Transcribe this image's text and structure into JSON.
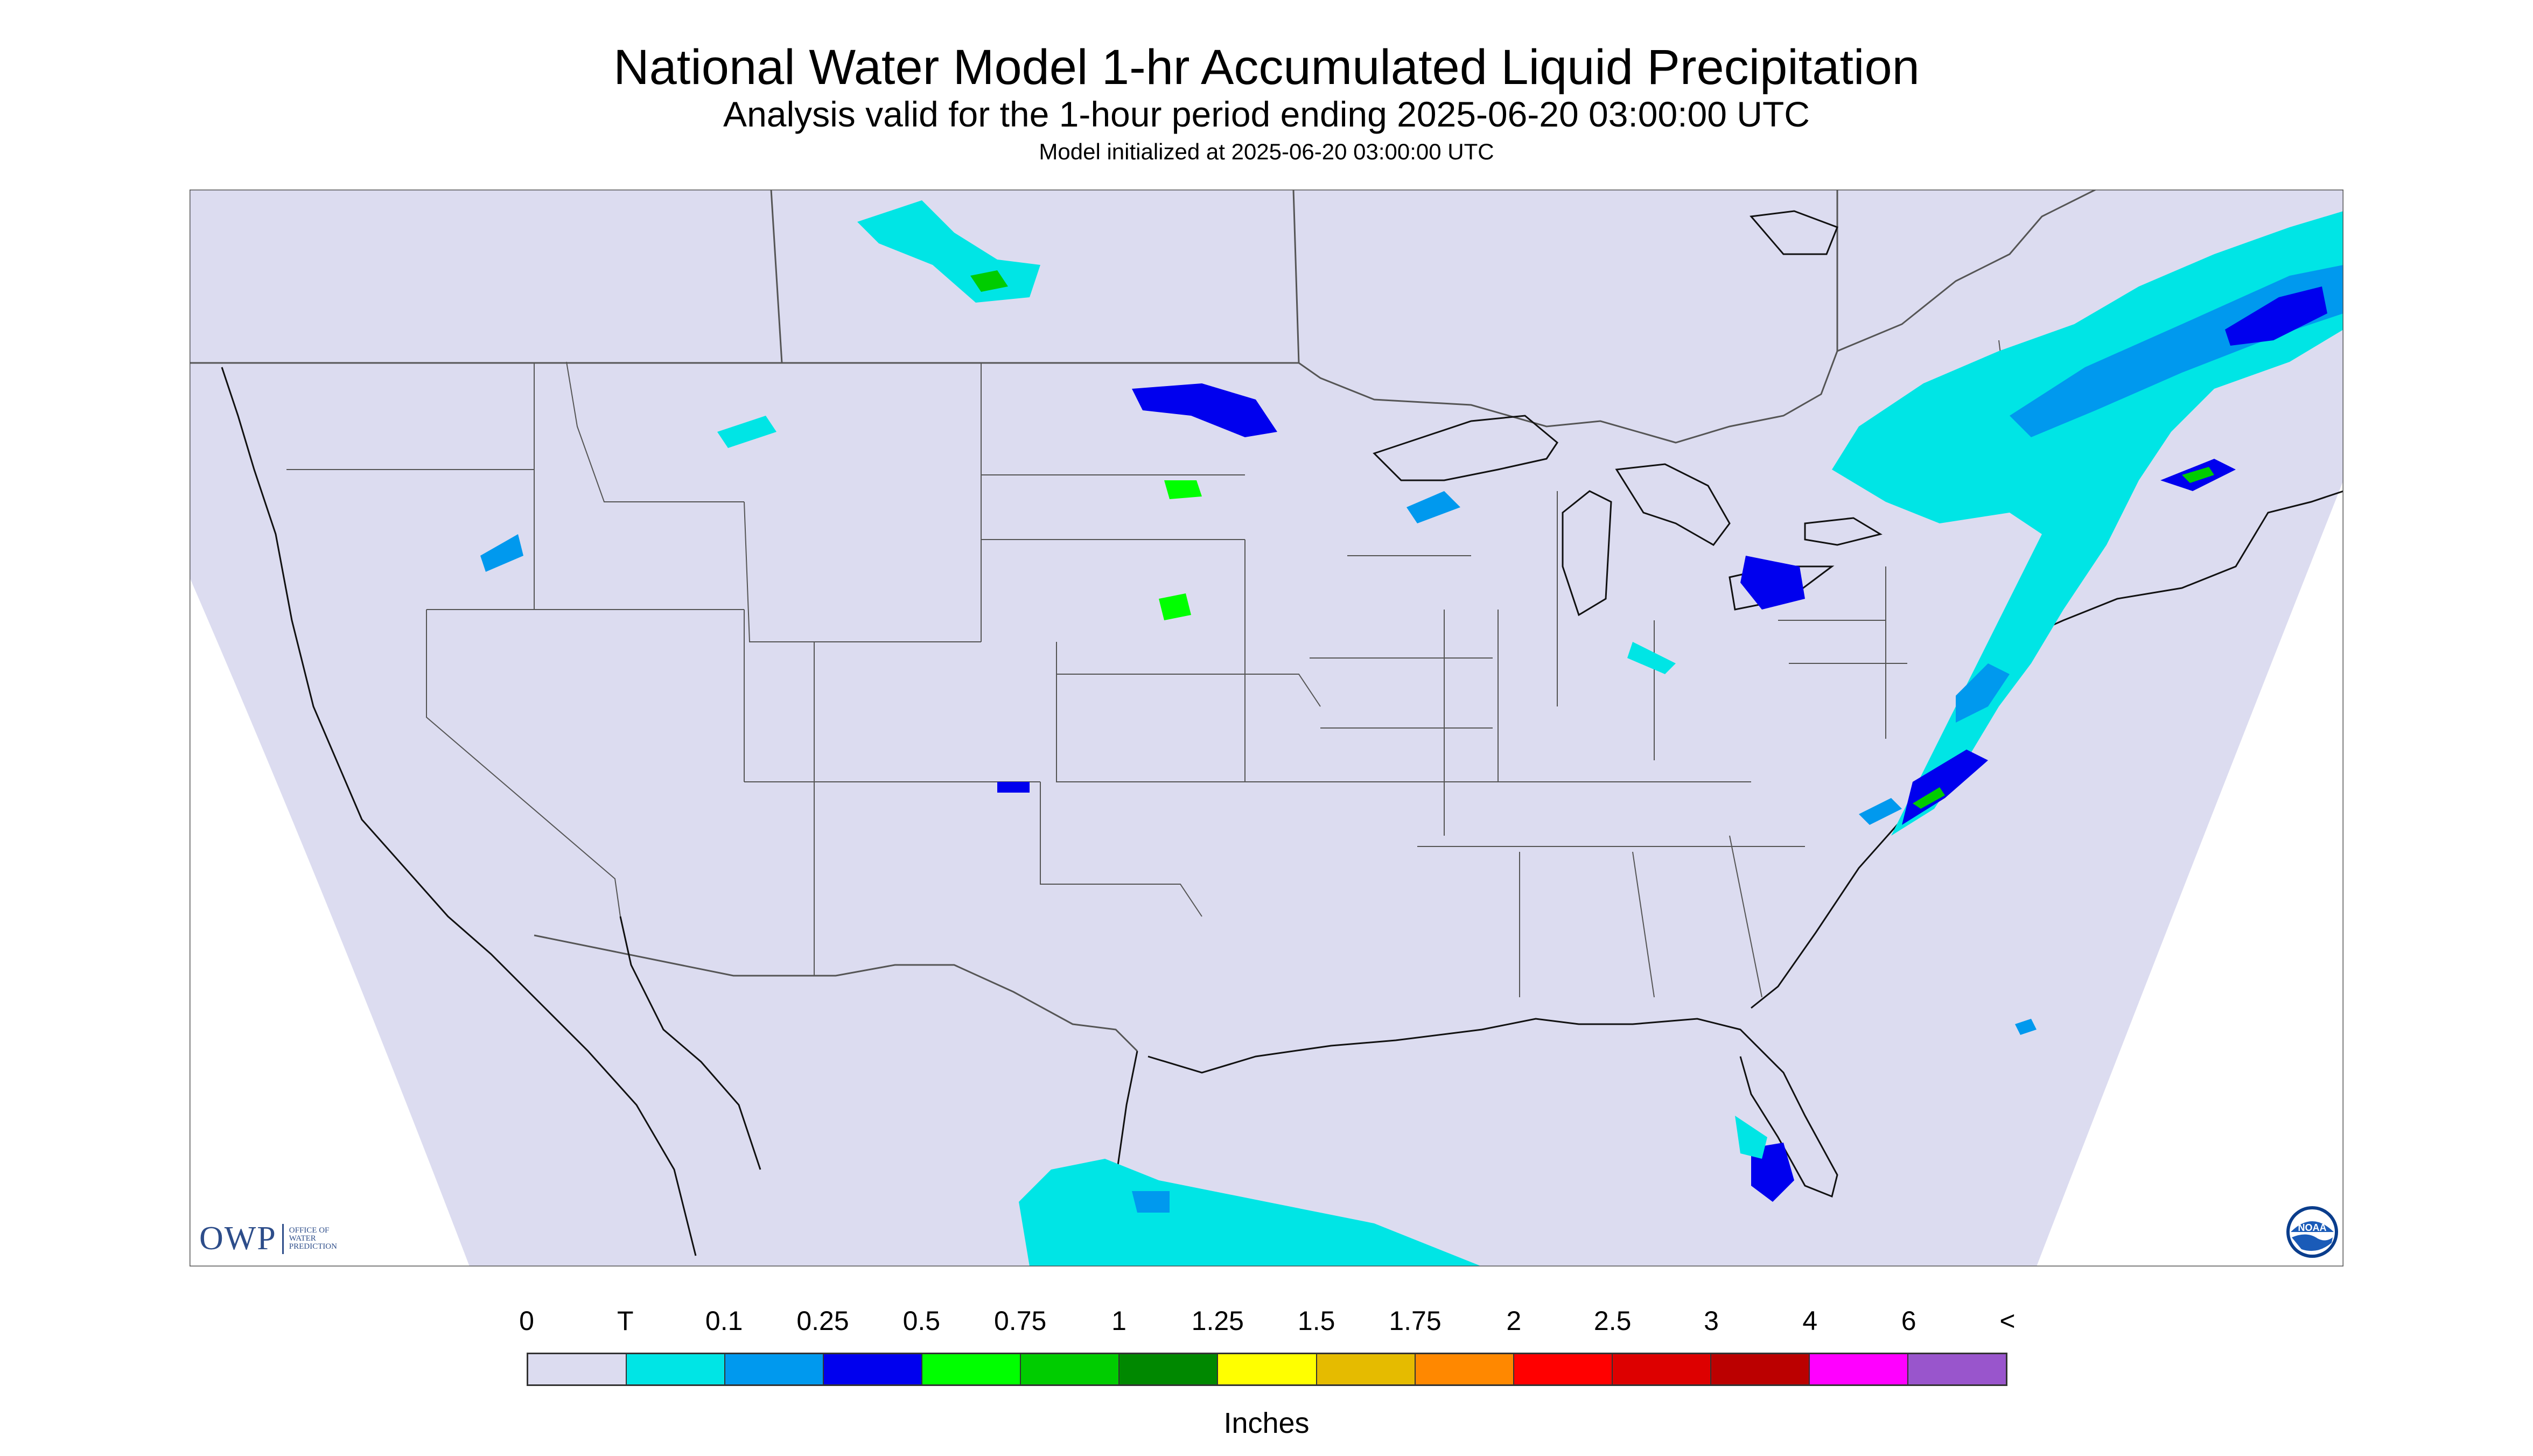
{
  "title": "National Water Model 1-hr Accumulated Liquid Precipitation",
  "subtitle": "Analysis valid for the 1-hour period ending 2025-06-20 03:00:00 UTC",
  "note": "Model initialized at 2025-06-20 03:00:00 UTC",
  "logos": {
    "owp_big": "OWP",
    "owp_small": [
      "OFFICE OF",
      "WATER",
      "PREDICTION"
    ],
    "noaa": "NOAA"
  },
  "legend": {
    "units": "Inches",
    "labels": [
      "0",
      "T",
      "0.1",
      "0.25",
      "0.5",
      "0.75",
      "1",
      "1.25",
      "1.5",
      "1.75",
      "2",
      "2.5",
      "3",
      "4",
      "6",
      "<"
    ],
    "colors": [
      "#dcdcf0",
      "#00e5e5",
      "#0099ee",
      "#0000ee",
      "#00ff00",
      "#00cc00",
      "#008800",
      "#ffff00",
      "#e5bb00",
      "#ff8800",
      "#ff0000",
      "#dd0000",
      "#bb0000",
      "#ff00ff",
      "#9955cc"
    ]
  },
  "colors": {
    "domain_fill": "#dcdcf0",
    "boundary": "#555555",
    "coast": "#111111",
    "trace": "#00e5e5",
    "light": "#0099ee",
    "moderate": "#0000ee",
    "heavy": "#00ff00",
    "heavier": "#00cc00"
  }
}
